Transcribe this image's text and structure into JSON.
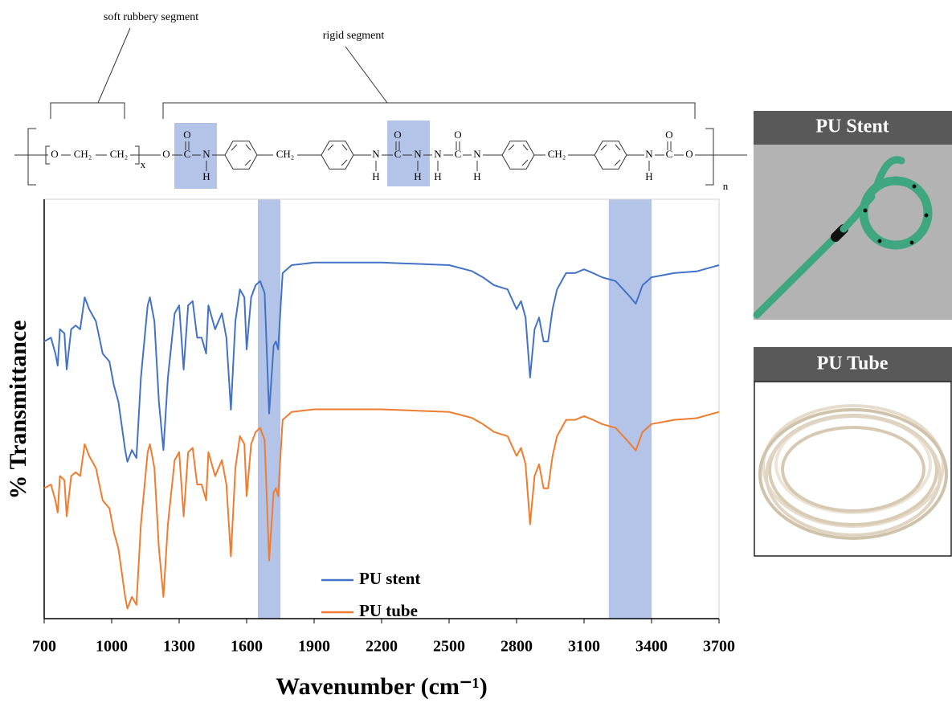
{
  "chart_data": {
    "type": "line",
    "xlabel": "Wavenumber (cm⁻¹)",
    "ylabel": "% Transmittance",
    "xlim": [
      700,
      3700
    ],
    "xticks": [
      700,
      1000,
      1300,
      1600,
      1900,
      2200,
      2500,
      2800,
      3100,
      3400,
      3700
    ],
    "ylim": [
      0,
      100
    ],
    "x": [
      700,
      730,
      750,
      760,
      770,
      790,
      800,
      820,
      840,
      860,
      880,
      900,
      930,
      960,
      990,
      1010,
      1030,
      1060,
      1070,
      1090,
      1110,
      1130,
      1160,
      1170,
      1190,
      1210,
      1230,
      1250,
      1280,
      1300,
      1320,
      1340,
      1360,
      1380,
      1400,
      1420,
      1430,
      1460,
      1490,
      1510,
      1530,
      1550,
      1570,
      1590,
      1600,
      1620,
      1640,
      1660,
      1680,
      1700,
      1720,
      1730,
      1740,
      1760,
      1800,
      1900,
      2200,
      2500,
      2600,
      2650,
      2700,
      2760,
      2800,
      2820,
      2840,
      2860,
      2880,
      2900,
      2920,
      2940,
      2960,
      2980,
      3020,
      3060,
      3100,
      3140,
      3180,
      3240,
      3300,
      3330,
      3360,
      3400,
      3500,
      3600,
      3700
    ],
    "series": [
      {
        "name": "PU stent",
        "color": "#4472c4",
        "values": [
          66.1,
          67.0,
          63.2,
          60.3,
          69.0,
          68.0,
          59.4,
          69.0,
          69.9,
          69.0,
          76.6,
          73.8,
          70.9,
          63.2,
          61.3,
          55.6,
          51.7,
          40.2,
          37.4,
          40.2,
          38.3,
          57.5,
          74.7,
          76.6,
          70.9,
          51.7,
          40.2,
          57.5,
          72.8,
          74.7,
          59.4,
          74.7,
          75.7,
          67.0,
          67.0,
          63.2,
          74.7,
          69.0,
          72.8,
          67.0,
          49.8,
          70.9,
          78.5,
          76.6,
          64.2,
          76.6,
          79.5,
          80.5,
          77.6,
          48.9,
          65.1,
          66.1,
          64.2,
          82.4,
          84.3,
          84.9,
          84.9,
          84.3,
          82.9,
          81.4,
          79.5,
          78.5,
          73.8,
          75.7,
          71.8,
          57.5,
          69.0,
          71.8,
          66.1,
          66.1,
          73.8,
          78.5,
          82.4,
          82.4,
          83.3,
          82.4,
          81.4,
          80.5,
          77.0,
          75.1,
          79.5,
          81.4,
          82.4,
          82.8,
          84.3
        ]
      },
      {
        "name": "PU tube",
        "color": "#ed7d31",
        "values": [
          31.1,
          32.0,
          28.2,
          25.3,
          34.0,
          33.0,
          24.4,
          34.0,
          34.9,
          34.0,
          41.6,
          38.8,
          35.9,
          28.2,
          26.3,
          20.6,
          16.7,
          5.2,
          2.4,
          5.2,
          3.3,
          22.5,
          39.7,
          41.6,
          35.9,
          16.7,
          5.2,
          22.5,
          37.8,
          39.7,
          24.4,
          39.7,
          40.7,
          32.0,
          32.0,
          28.2,
          39.7,
          34.0,
          37.8,
          32.0,
          14.8,
          35.9,
          43.5,
          41.6,
          29.2,
          41.6,
          44.5,
          45.5,
          42.6,
          13.9,
          30.1,
          31.1,
          29.2,
          47.4,
          49.3,
          49.9,
          49.9,
          49.3,
          47.9,
          46.4,
          44.5,
          43.5,
          38.8,
          40.7,
          36.8,
          22.5,
          34.0,
          36.8,
          31.1,
          31.1,
          38.8,
          43.5,
          47.4,
          47.4,
          48.3,
          47.4,
          46.4,
          45.5,
          42.0,
          40.1,
          44.5,
          46.4,
          47.4,
          47.8,
          49.3
        ]
      }
    ],
    "bands": [
      [
        1650,
        1750
      ],
      [
        3210,
        3400
      ]
    ],
    "band_color": "#b4c3e8",
    "legend": "bottom center"
  },
  "structure": {
    "soft_label": "soft rubbery segment",
    "rigid_label": "rigid segment",
    "highlight_color": "#b4c3e8",
    "atoms": [
      "O",
      "CH₂",
      "CH₂",
      "x",
      "O",
      "C",
      "O",
      "N",
      "H",
      "CH₂",
      "N",
      "H",
      "C",
      "O",
      "N",
      "H",
      "N",
      "H",
      "C",
      "O",
      "N",
      "H",
      "CH₂",
      "N",
      "H",
      "C",
      "O",
      "O",
      "n"
    ]
  },
  "panels": [
    {
      "title": "PU Stent"
    },
    {
      "title": "PU Tube"
    }
  ]
}
